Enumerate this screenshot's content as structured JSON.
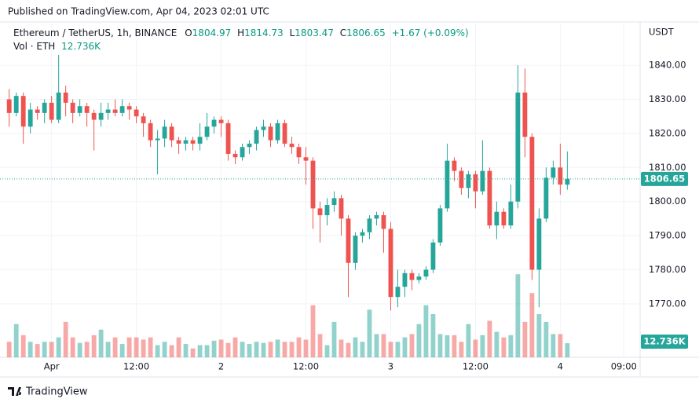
{
  "header": {
    "published": "Published on TradingView.com, Apr 04, 2023 02:01 UTC"
  },
  "chart_data": {
    "type": "candlestick",
    "title": "Ethereum / TetherUS, 1h, BINANCE",
    "legend": {
      "o": "O",
      "h": "H",
      "l": "L",
      "c": "C",
      "change": "+1.67 (+0.09%)"
    },
    "y_axis_label": "USDT",
    "up_color": "#26a69a",
    "down_color": "#ef5350",
    "open": [
      1830,
      1826,
      1831,
      1822,
      1827,
      1826,
      1829,
      1824,
      1832,
      1829,
      1826,
      1828,
      1826,
      1824,
      1826,
      1827,
      1826,
      1828,
      1827,
      1825,
      1823,
      1818,
      1818.5,
      1822,
      1818,
      1817,
      1818,
      1817,
      1819,
      1822,
      1824,
      1823,
      1814,
      1813,
      1816,
      1817,
      1821,
      1822,
      1818,
      1823,
      1817,
      1816,
      1813,
      1812,
      1798,
      1796,
      1799,
      1801,
      1795,
      1782,
      1790,
      1791,
      1795,
      1796,
      1792,
      1772,
      1775,
      1779,
      1777,
      1778,
      1780,
      1788,
      1798,
      1812,
      1809,
      1804,
      1808,
      1803,
      1809,
      1793,
      1797,
      1793,
      1800,
      1832,
      1819,
      1780,
      1795,
      1807,
      1810,
      1804.97
    ],
    "high": [
      1833,
      1832,
      1832,
      1829,
      1828,
      1830,
      1831,
      1843,
      1834,
      1830,
      1830,
      1829,
      1827,
      1829,
      1829,
      1830,
      1830,
      1829,
      1828,
      1826,
      1824,
      1821,
      1824,
      1823,
      1819,
      1819,
      1819,
      1823,
      1826,
      1825,
      1825,
      1824,
      1815,
      1817,
      1818,
      1822,
      1824,
      1823,
      1824,
      1824,
      1819,
      1817,
      1816,
      1813,
      1800,
      1801,
      1803,
      1802,
      1796,
      1791,
      1792,
      1796,
      1797,
      1797,
      1794,
      1780,
      1780,
      1780,
      1779,
      1781,
      1789,
      1799,
      1817,
      1813,
      1810,
      1809,
      1809,
      1818,
      1810,
      1800,
      1798,
      1805,
      1840,
      1839,
      1820,
      1798,
      1810,
      1812,
      1817,
      1814.73
    ],
    "low": [
      1822,
      1825,
      1817,
      1820,
      1824,
      1823,
      1823,
      1823,
      1825,
      1823,
      1825,
      1822,
      1815,
      1822,
      1824,
      1825,
      1825,
      1824,
      1823,
      1819,
      1816,
      1808,
      1816,
      1816,
      1814,
      1815,
      1815,
      1815,
      1818,
      1820,
      1819,
      1812,
      1811,
      1812,
      1814,
      1815,
      1819,
      1816,
      1817,
      1816,
      1814,
      1811,
      1805,
      1792,
      1788,
      1793,
      1797,
      1790,
      1772,
      1780,
      1788,
      1789,
      1793,
      1785,
      1768,
      1769,
      1772,
      1774,
      1776,
      1777,
      1779,
      1787,
      1797,
      1806,
      1802,
      1801,
      1798,
      1802,
      1792,
      1789,
      1792,
      1792,
      1798,
      1813,
      1777,
      1769,
      1794,
      1805,
      1802,
      1803.47
    ],
    "close": [
      1826,
      1831,
      1822,
      1827,
      1826,
      1829,
      1824,
      1832,
      1829,
      1826,
      1828,
      1826,
      1824,
      1826,
      1827,
      1826,
      1828,
      1827,
      1825,
      1823,
      1818,
      1818.5,
      1822,
      1818,
      1817,
      1818,
      1817,
      1819,
      1822,
      1824,
      1823,
      1814,
      1813,
      1816,
      1817,
      1821,
      1822,
      1818,
      1823,
      1817,
      1816,
      1813,
      1812,
      1798,
      1796,
      1799,
      1801,
      1795,
      1782,
      1790,
      1791,
      1795,
      1796,
      1792,
      1772,
      1775,
      1779,
      1777,
      1778,
      1780,
      1788,
      1798,
      1812,
      1809,
      1804,
      1808,
      1803,
      1809,
      1793,
      1797,
      1793,
      1800,
      1832,
      1819,
      1780,
      1795,
      1807,
      1810,
      1805,
      1806.65
    ],
    "volume": {
      "name": "Vol · ETH",
      "values": [
        14,
        30,
        20,
        14,
        12,
        14,
        14,
        18,
        32,
        18,
        13,
        14,
        20,
        25,
        14,
        18,
        12,
        18,
        18,
        16,
        18,
        11,
        14,
        11,
        18,
        12,
        8,
        11,
        11,
        15,
        16,
        13,
        18,
        14,
        12,
        14,
        13,
        14,
        16,
        14,
        14,
        18,
        16,
        47,
        21,
        11,
        32,
        16,
        13,
        18,
        14,
        43,
        21,
        21,
        14,
        14,
        18,
        21,
        30,
        47,
        39,
        21,
        20,
        20,
        14,
        30,
        16,
        20,
        33,
        23,
        18,
        20,
        75,
        32,
        58,
        39,
        32,
        21,
        21,
        12.736
      ],
      "last_label": "12.736K"
    },
    "xlim": [
      -1.3,
      89.3
    ],
    "xticks": [
      {
        "value": 6,
        "label": "Apr"
      },
      {
        "value": 18,
        "label": "12:00"
      },
      {
        "value": 30,
        "label": "2"
      },
      {
        "value": 42,
        "label": "12:00"
      },
      {
        "value": 54,
        "label": "3"
      },
      {
        "value": 66,
        "label": "12:00"
      },
      {
        "value": 78,
        "label": "4"
      },
      {
        "value": 87,
        "label": "09:00"
      }
    ],
    "ylim": [
      1754.3,
      1852.7
    ],
    "yticks": [
      {
        "value": 1770,
        "label": "1770.00"
      },
      {
        "value": 1780,
        "label": "1780.00"
      },
      {
        "value": 1790,
        "label": "1790.00"
      },
      {
        "value": 1800,
        "label": "1800.00"
      },
      {
        "value": 1810,
        "label": "1810.00"
      },
      {
        "value": 1820,
        "label": "1820.00"
      },
      {
        "value": 1830,
        "label": "1830.00"
      },
      {
        "value": 1840,
        "label": "1840.00"
      }
    ],
    "grid": true
  },
  "footer": {
    "brand": "TradingView"
  }
}
